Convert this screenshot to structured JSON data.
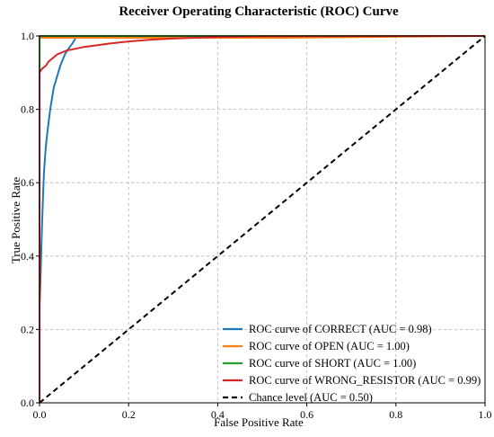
{
  "chart_data": {
    "type": "line",
    "title": "Receiver Operating Characteristic (ROC) Curve",
    "xlabel": "False Positive Rate",
    "ylabel": "True Positive Rate",
    "xlim": [
      0.0,
      1.0
    ],
    "ylim": [
      0.0,
      1.0
    ],
    "grid": true,
    "legend_position": "bottom-right",
    "x_ticks": [
      "0.0",
      "0.2",
      "0.4",
      "0.6",
      "0.8",
      "1.0"
    ],
    "y_ticks": [
      "0.0",
      "0.2",
      "0.4",
      "0.6",
      "0.8",
      "1.0"
    ],
    "series": [
      {
        "name": "ROC curve of CORRECT (AUC = 0.98)",
        "color": "#1f77b4",
        "dashed": false,
        "x": [
          0.0,
          0.0,
          0.002,
          0.004,
          0.006,
          0.008,
          0.01,
          0.013,
          0.016,
          0.02,
          0.024,
          0.028,
          0.032,
          0.037,
          0.042,
          0.047,
          0.052,
          0.057,
          0.062,
          0.068,
          0.074,
          0.079,
          0.083
        ],
        "y": [
          0.0,
          0.26,
          0.33,
          0.42,
          0.5,
          0.57,
          0.63,
          0.68,
          0.72,
          0.76,
          0.8,
          0.83,
          0.86,
          0.88,
          0.9,
          0.92,
          0.935,
          0.95,
          0.96,
          0.97,
          0.98,
          0.99,
          1.0
        ]
      },
      {
        "name": "ROC curve of OPEN (AUC = 1.00)",
        "color": "#ff7f0e",
        "dashed": false,
        "x": [
          0.0,
          0.0,
          0.55,
          1.0
        ],
        "y": [
          0.0,
          0.995,
          0.995,
          1.0
        ]
      },
      {
        "name": "ROC curve of SHORT (AUC = 1.00)",
        "color": "#2ca02c",
        "dashed": false,
        "x": [
          0.0,
          0.0,
          1.0
        ],
        "y": [
          0.0,
          1.0,
          1.0
        ]
      },
      {
        "name": "ROC curve of WRONG_RESISTOR (AUC = 0.99)",
        "color": "#d62728",
        "dashed": false,
        "x": [
          0.0,
          0.0,
          0.005,
          0.01,
          0.015,
          0.02,
          0.03,
          0.04,
          0.05,
          0.06,
          0.08,
          0.1,
          0.13,
          0.16,
          0.2,
          0.25,
          0.3,
          0.35,
          0.4,
          0.5,
          1.0
        ],
        "y": [
          0.0,
          0.9,
          0.91,
          0.915,
          0.92,
          0.93,
          0.94,
          0.95,
          0.955,
          0.96,
          0.965,
          0.97,
          0.975,
          0.98,
          0.985,
          0.99,
          0.993,
          0.995,
          0.997,
          0.999,
          1.0
        ]
      },
      {
        "name": "Chance level (AUC = 0.50)",
        "color": "#000000",
        "dashed": true,
        "x": [
          0.0,
          1.0
        ],
        "y": [
          0.0,
          1.0
        ]
      }
    ]
  }
}
